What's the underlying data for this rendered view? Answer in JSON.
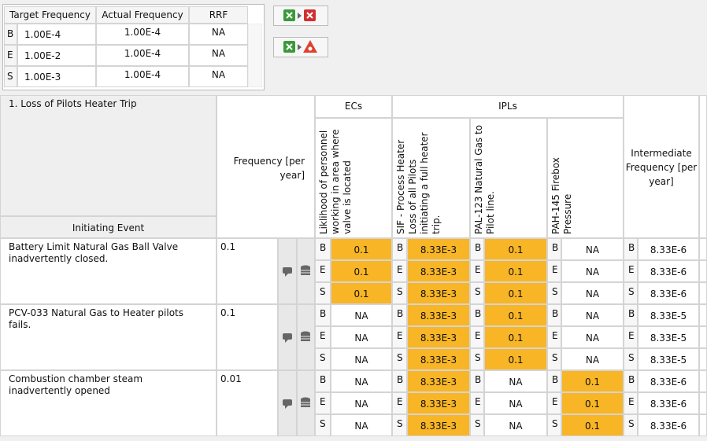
{
  "summary": {
    "headers": [
      "Target Frequency",
      "Actual Frequency",
      "RRF"
    ],
    "rows": [
      [
        "B",
        "1.00E-4",
        "1.00E-4",
        "NA"
      ],
      [
        "E",
        "1.00E-2",
        "1.00E-4",
        "NA"
      ],
      [
        "S",
        "1.00E-3",
        "1.00E-4",
        "NA"
      ]
    ]
  },
  "worksheet": {
    "scenario": "1. Loss of Pilots Heater Trip",
    "initiating_event_header": "Initiating Event",
    "frequency_header": "Frequency [per year]",
    "ecs_header": "ECs",
    "ipls_header": "IPLs",
    "columns": [
      "Liklihood of personnel working in area where valve is located",
      "SIF - Process Heater Loss of all Pilots initiating a full heater trip.",
      "PAL-123 Natural Gas to Pilot line.",
      "PAH-145 Firebox Pressure"
    ],
    "intermediate_header": "Intermediate Frequency [per year]",
    "rows": [
      {
        "event": "Battery Limit Natural Gas Ball Valve inadvertently closed.",
        "frequency": "0.1",
        "levels": [
          {
            "level": "B",
            "values": [
              "0.1",
              "8.33E-3",
              "0.1",
              "NA",
              "8.33E-6"
            ]
          },
          {
            "level": "E",
            "values": [
              "0.1",
              "8.33E-3",
              "0.1",
              "NA",
              "8.33E-6"
            ]
          },
          {
            "level": "S",
            "values": [
              "0.1",
              "8.33E-3",
              "0.1",
              "NA",
              "8.33E-6"
            ]
          }
        ]
      },
      {
        "event": "PCV-033 Natural Gas to Heater pilots fails.",
        "frequency": "0.1",
        "levels": [
          {
            "level": "B",
            "values": [
              "NA",
              "8.33E-3",
              "0.1",
              "NA",
              "8.33E-5"
            ]
          },
          {
            "level": "E",
            "values": [
              "NA",
              "8.33E-3",
              "0.1",
              "NA",
              "8.33E-5"
            ]
          },
          {
            "level": "S",
            "values": [
              "NA",
              "8.33E-3",
              "0.1",
              "NA",
              "8.33E-5"
            ]
          }
        ]
      },
      {
        "event": "Combustion chamber steam inadvertently opened",
        "frequency": "0.01",
        "levels": [
          {
            "level": "B",
            "values": [
              "NA",
              "8.33E-3",
              "NA",
              "0.1",
              "8.33E-6"
            ]
          },
          {
            "level": "E",
            "values": [
              "NA",
              "8.33E-3",
              "NA",
              "0.1",
              "8.33E-6"
            ]
          },
          {
            "level": "S",
            "values": [
              "NA",
              "8.33E-3",
              "NA",
              "0.1",
              "8.33E-6"
            ]
          }
        ]
      }
    ]
  }
}
